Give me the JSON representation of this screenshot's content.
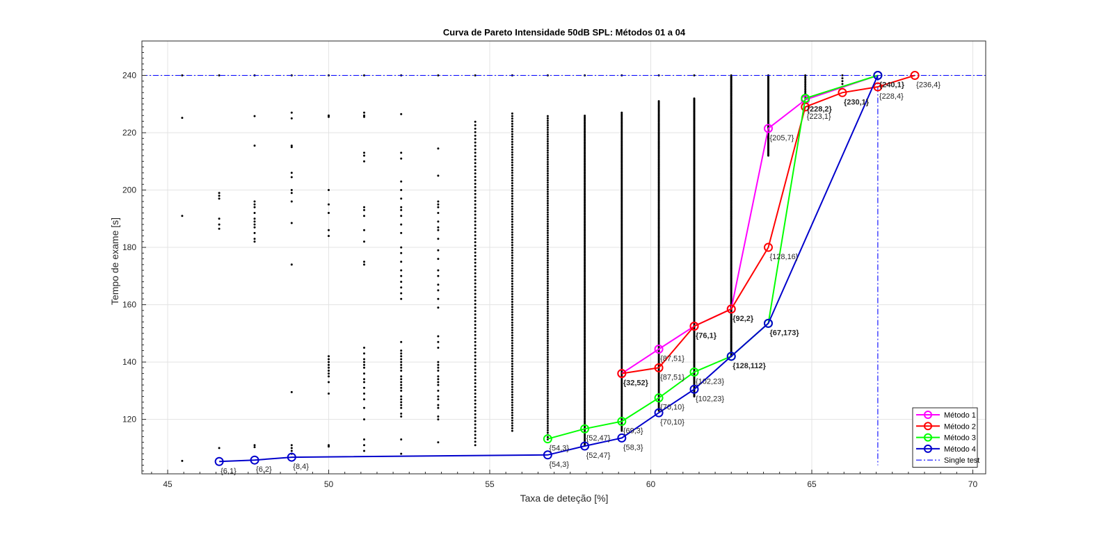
{
  "chart_data": {
    "type": "line",
    "title": "Curva de Pareto Intensidade 50dB SPL: Métodos 01 a 04",
    "xlabel": "Taxa de deteção [%]",
    "ylabel": "Tempo de exame [s]",
    "xlim": [
      44.2,
      70.4
    ],
    "ylim": [
      101,
      252
    ],
    "xticks": [
      45,
      50,
      55,
      60,
      65,
      70
    ],
    "yticks": [
      120,
      140,
      160,
      180,
      200,
      220,
      240
    ],
    "grid": true,
    "legend_position": "bottom-right",
    "single_test": {
      "name": "Single test",
      "y": 240,
      "x": 67.05,
      "color": "#0000ff"
    },
    "series": [
      {
        "name": "Método 1",
        "color": "#ff00ff",
        "x": [
          59.1,
          60.25,
          61.35,
          62.5,
          63.65,
          64.8,
          67.05
        ],
        "y": [
          136,
          144.5,
          152.5,
          158.5,
          221.5,
          231.5,
          240
        ]
      },
      {
        "name": "Método 2",
        "color": "#ff0000",
        "x": [
          59.1,
          60.25,
          61.35,
          62.5,
          63.65,
          64.8,
          65.95,
          67.05,
          68.2
        ],
        "y": [
          136,
          138,
          152.5,
          158.5,
          180,
          229,
          234,
          236,
          240
        ]
      },
      {
        "name": "Método 3",
        "color": "#00ff00",
        "x": [
          56.8,
          57.95,
          59.1,
          60.25,
          61.35,
          62.5,
          63.65,
          64.8,
          67.05
        ],
        "y": [
          113.2,
          116.7,
          119.3,
          127.5,
          136.5,
          142,
          153.5,
          232,
          240
        ]
      },
      {
        "name": "Método 4",
        "color": "#0000cc",
        "x": [
          46.6,
          47.7,
          48.85,
          56.8,
          57.95,
          59.1,
          60.25,
          61.35,
          62.5,
          63.65,
          67.05
        ],
        "y": [
          105.3,
          105.8,
          106.8,
          107.6,
          110.7,
          113.5,
          122.3,
          130.5,
          142,
          153.5,
          240
        ]
      }
    ],
    "annotations": [
      {
        "text": "{6,1}",
        "x": 46.6,
        "y": 105.3,
        "pos": "below"
      },
      {
        "text": "{6,2}",
        "x": 47.7,
        "y": 105.8,
        "pos": "below"
      },
      {
        "text": "{8,4}",
        "x": 48.85,
        "y": 106.8,
        "pos": "below"
      },
      {
        "text": "{54,3}",
        "x": 56.8,
        "y": 107.6,
        "pos": "below"
      },
      {
        "text": "{54,3}",
        "x": 56.8,
        "y": 113.2,
        "pos": "below"
      },
      {
        "text": "{52,47}",
        "x": 57.95,
        "y": 110.7,
        "pos": "below"
      },
      {
        "text": "{52,47}",
        "x": 57.95,
        "y": 116.7,
        "pos": "below"
      },
      {
        "text": "{69,3}",
        "x": 59.1,
        "y": 119.3,
        "pos": "below"
      },
      {
        "text": "{58,3}",
        "x": 59.1,
        "y": 113.5,
        "pos": "below"
      },
      {
        "text": "{70,10}",
        "x": 60.25,
        "y": 122.3,
        "pos": "below"
      },
      {
        "text": "{70,10}",
        "x": 60.25,
        "y": 127.5,
        "pos": "below"
      },
      {
        "text": "{102,23}",
        "x": 61.35,
        "y": 130.5,
        "pos": "below"
      },
      {
        "text": "{102,23}",
        "x": 61.35,
        "y": 136.5,
        "pos": "below"
      },
      {
        "text": "{128,112}",
        "x": 62.5,
        "y": 142,
        "pos": "below",
        "bold": true
      },
      {
        "text": "{32,52}",
        "x": 59.1,
        "y": 136,
        "pos": "below",
        "bold": true
      },
      {
        "text": "{87,51}",
        "x": 60.25,
        "y": 138,
        "pos": "below"
      },
      {
        "text": "{87,51}",
        "x": 60.25,
        "y": 144.5,
        "pos": "below"
      },
      {
        "text": "{76,1}",
        "x": 61.35,
        "y": 152.5,
        "pos": "below",
        "bold": true
      },
      {
        "text": "{92,2}",
        "x": 62.5,
        "y": 158.5,
        "pos": "below",
        "bold": true
      },
      {
        "text": "{67,173}",
        "x": 63.65,
        "y": 153.5,
        "pos": "below",
        "bold": true
      },
      {
        "text": "{128,16}",
        "x": 63.65,
        "y": 180,
        "pos": "below"
      },
      {
        "text": "{205,7}",
        "x": 63.65,
        "y": 221.5,
        "pos": "below"
      },
      {
        "text": "{228,2}",
        "x": 64.8,
        "y": 231.5,
        "pos": "below",
        "bold": true
      },
      {
        "text": "{223,1}",
        "x": 64.8,
        "y": 229,
        "pos": "below"
      },
      {
        "text": "{230,1}",
        "x": 65.95,
        "y": 234,
        "pos": "below",
        "bold": true
      },
      {
        "text": "{240,1}",
        "x": 67.05,
        "y": 240,
        "pos": "below",
        "bold": true
      },
      {
        "text": "{228,4}",
        "x": 67.05,
        "y": 236,
        "pos": "below"
      },
      {
        "text": "{236,4}",
        "x": 68.2,
        "y": 240,
        "pos": "below"
      }
    ],
    "scatter": {
      "color": "#000000",
      "columns": [
        {
          "x": 45.45,
          "y": [
            105.5,
            191,
            225.2,
            240
          ]
        },
        {
          "x": 46.6,
          "y": [
            110,
            186.5,
            188,
            190,
            197,
            198,
            199,
            240
          ]
        },
        {
          "x": 47.7,
          "y": [
            110.3,
            111,
            182,
            183,
            185,
            187,
            188,
            189,
            190,
            192,
            194,
            195,
            196,
            215.5,
            225.8,
            240
          ]
        },
        {
          "x": 48.85,
          "y": [
            108,
            109,
            110,
            111,
            129.5,
            174,
            188.5,
            196,
            199,
            200,
            204.5,
            206,
            215,
            215.5,
            225,
            227,
            240
          ]
        },
        {
          "range": [
            50.0,
            51.0
          ],
          "x": 50.0,
          "y": [
            110.5,
            111,
            129,
            133,
            135,
            136,
            137,
            138,
            139,
            140,
            141,
            142,
            184,
            186,
            192,
            195,
            200,
            225.5,
            226,
            240
          ]
        },
        {
          "x": 51.1,
          "y": [
            109,
            111,
            113,
            120,
            124,
            127,
            129,
            131,
            133,
            134,
            136,
            138,
            139,
            140,
            141,
            143,
            145,
            174,
            175,
            182,
            186,
            191,
            193,
            194,
            210,
            212,
            213,
            225.5,
            226,
            227,
            240
          ]
        },
        {
          "x": 52.25,
          "y": [
            108,
            113,
            121,
            122,
            124,
            125,
            126,
            127,
            128,
            130,
            131,
            132,
            133,
            134,
            135,
            137,
            138,
            139,
            140,
            141,
            142,
            143,
            144,
            147,
            162,
            164,
            166,
            168,
            170,
            172,
            175,
            178,
            180,
            185,
            188,
            191,
            193,
            194,
            197,
            200,
            203,
            211,
            213,
            226.5,
            240
          ]
        },
        {
          "x": 53.4,
          "y": [
            112,
            120,
            121,
            124,
            125,
            127,
            128,
            130,
            132,
            133,
            134,
            135,
            137,
            138,
            139,
            140,
            145,
            147,
            149,
            159,
            162,
            165,
            167,
            170,
            172,
            176,
            179,
            183,
            186,
            187,
            189,
            192,
            194,
            195,
            196,
            205,
            214.5,
            240
          ]
        },
        {
          "dense": [
            111,
            224
          ],
          "x": 54.55,
          "step": 1.2,
          "y": [
            240
          ]
        },
        {
          "dense": [
            116,
            227
          ],
          "x": 55.7,
          "step": 0.9,
          "y": [
            240
          ]
        },
        {
          "dense": [
            113,
            226.5
          ],
          "x": 56.8,
          "step": 0.8,
          "y": [
            240
          ]
        },
        {
          "dense": [
            111,
            226
          ],
          "x": 57.95,
          "step": 0.55,
          "y": [
            240
          ]
        },
        {
          "dense": [
            116,
            227
          ],
          "x": 59.1,
          "step": 0.5,
          "y": [
            240
          ]
        },
        {
          "dense": [
            123,
            231
          ],
          "x": 60.25,
          "step": 0.45,
          "y": [
            240
          ]
        },
        {
          "dense": [
            128,
            232
          ],
          "x": 61.35,
          "step": 0.35,
          "y": [
            240
          ]
        },
        {
          "dense": [
            142,
            240
          ],
          "x": 62.5,
          "step": 0.3,
          "y": [
            240
          ]
        },
        {
          "dense": [
            212,
            240
          ],
          "x": 63.65,
          "step": 0.3,
          "y": [
            240
          ]
        },
        {
          "dense": [
            232,
            240
          ],
          "x": 64.8,
          "step": 0.6,
          "y": [
            240
          ]
        },
        {
          "x": 65.95,
          "y": [
            236,
            237,
            238,
            239,
            240
          ]
        }
      ]
    }
  }
}
